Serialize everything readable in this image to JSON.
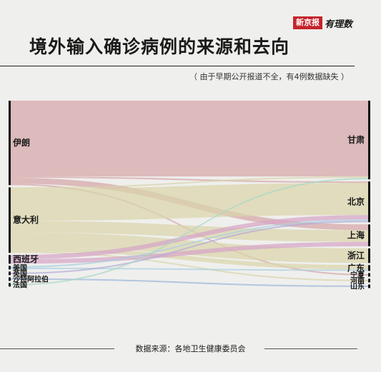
{
  "header": {
    "brand_box": "新京报",
    "brand_script": "有理数",
    "title": "境外输入确诊病例的来源和去向",
    "note": "（ 由于早期公开报道不全，有4例数据缺失 ）"
  },
  "footer": {
    "source": "数据来源：各地卫生健康委员会"
  },
  "chart_data": {
    "type": "sankey",
    "sources": [
      {
        "name": "伊朗",
        "value": 58,
        "color": "#d6a5a8"
      },
      {
        "name": "意大利",
        "value": 45,
        "color": "#d9d4ab"
      },
      {
        "name": "西班牙",
        "value": 6,
        "color": "#d6a5c8"
      },
      {
        "name": "美国",
        "value": 2,
        "color": "#a9cfe0"
      },
      {
        "name": "英国",
        "value": 1,
        "color": "#b3a9d8"
      },
      {
        "name": "沙特阿拉伯",
        "value": 1,
        "color": "#9fb7d9"
      },
      {
        "name": "法国",
        "value": 1,
        "color": "#a8d8c8"
      }
    ],
    "targets": [
      {
        "name": "甘肃",
        "value": 54
      },
      {
        "name": "北京",
        "value": 28
      },
      {
        "name": "上海",
        "value": 15
      },
      {
        "name": "浙江",
        "value": 10
      },
      {
        "name": "广东",
        "value": 4
      },
      {
        "name": "宁夏",
        "value": 1
      },
      {
        "name": "河南",
        "value": 1
      },
      {
        "name": "山东",
        "value": 1
      }
    ],
    "flows": [
      {
        "source": "伊朗",
        "target": "甘肃",
        "value": 52
      },
      {
        "source": "伊朗",
        "target": "北京",
        "value": 1
      },
      {
        "source": "伊朗",
        "target": "上海",
        "value": 4
      },
      {
        "source": "伊朗",
        "target": "宁夏",
        "value": 1
      },
      {
        "source": "意大利",
        "target": "甘肃",
        "value": 1
      },
      {
        "source": "意大利",
        "target": "北京",
        "value": 22
      },
      {
        "source": "意大利",
        "target": "上海",
        "value": 8
      },
      {
        "source": "意大利",
        "target": "浙江",
        "value": 10
      },
      {
        "source": "意大利",
        "target": "广东",
        "value": 3
      },
      {
        "source": "意大利",
        "target": "河南",
        "value": 1
      },
      {
        "source": "西班牙",
        "target": "北京",
        "value": 3
      },
      {
        "source": "西班牙",
        "target": "上海",
        "value": 3
      },
      {
        "source": "美国",
        "target": "北京",
        "value": 1
      },
      {
        "source": "美国",
        "target": "广东",
        "value": 1
      },
      {
        "source": "英国",
        "target": "北京",
        "value": 1
      },
      {
        "source": "沙特阿拉伯",
        "target": "山东",
        "value": 1
      },
      {
        "source": "法国",
        "target": "甘肃",
        "value": 1
      }
    ]
  }
}
